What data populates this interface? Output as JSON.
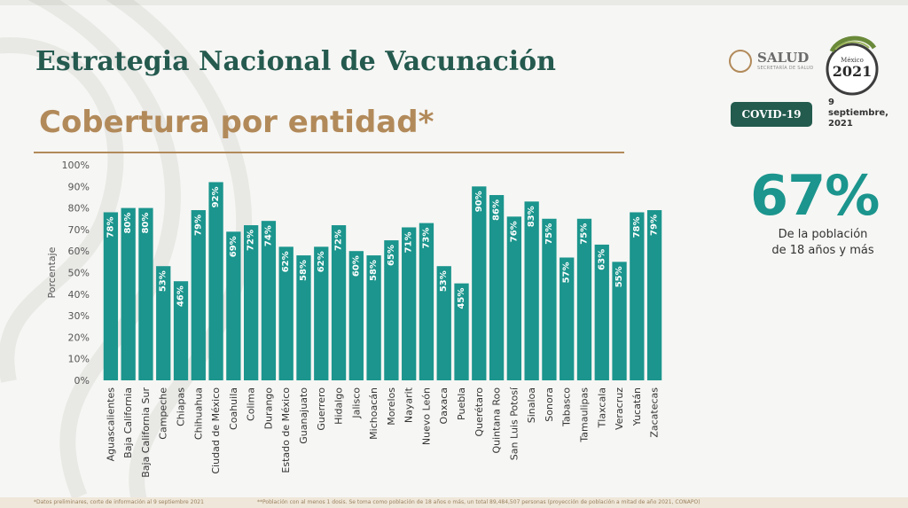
{
  "header": {
    "title": "Estrategia Nacional de Vacunación",
    "subtitle": "Cobertura por entidad*"
  },
  "logos": {
    "salud": "SALUD",
    "salud_sub": "SECRETARÍA DE SALUD",
    "mexico_year": "2021",
    "mexico_word": "México"
  },
  "badge": {
    "label": "COVID-19"
  },
  "date": {
    "text": "9\nseptiembre,\n2021"
  },
  "highlight": {
    "value": "67%",
    "description": "De la población\nde 18 años y más"
  },
  "colors": {
    "bar": "#1b958d",
    "title": "#255a4f",
    "accent": "#b28a5a",
    "badge": "#235b4e"
  },
  "chart_data": {
    "type": "bar",
    "ylabel": "Porcentaje",
    "ylim": [
      0,
      100
    ],
    "yticks": [
      "0%",
      "10%",
      "20%",
      "30%",
      "40%",
      "50%",
      "60%",
      "70%",
      "80%",
      "90%",
      "100%"
    ],
    "grid": false,
    "categories": [
      "Aguascalientes",
      "Baja California",
      "Baja California Sur",
      "Campeche",
      "Chiapas",
      "Chihuahua",
      "Ciudad de México",
      "Coahuila",
      "Colima",
      "Durango",
      "Estado de México",
      "Guanajuato",
      "Guerrero",
      "Hidalgo",
      "Jalisco",
      "Michoacán",
      "Morelos",
      "Nayarit",
      "Nuevo León",
      "Oaxaca",
      "Puebla",
      "Querétaro",
      "Quintana Roo",
      "San Luis Potosí",
      "Sinaloa",
      "Sonora",
      "Tabasco",
      "Tamaulipas",
      "Tlaxcala",
      "Veracruz",
      "Yucatán",
      "Zacatecas"
    ],
    "values": [
      78,
      80,
      80,
      53,
      46,
      79,
      92,
      69,
      72,
      74,
      62,
      58,
      62,
      72,
      60,
      58,
      65,
      71,
      73,
      53,
      45,
      90,
      86,
      76,
      83,
      75,
      57,
      75,
      63,
      55,
      78,
      79
    ],
    "data_labels": [
      "78%",
      "80%",
      "80%",
      "53%",
      "46%",
      "79%",
      "92%",
      "69%",
      "72%",
      "74%",
      "62%",
      "58%",
      "62%",
      "72%",
      "60%",
      "58%",
      "65%",
      "71%",
      "73%",
      "53%",
      "45%",
      "90%",
      "86%",
      "76%",
      "83%",
      "75%",
      "57%",
      "75%",
      "63%",
      "55%",
      "78%",
      "79%"
    ]
  },
  "footnotes": {
    "left": "*Datos preliminares, corte de información al 9 septiembre 2021",
    "right": "**Población con al menos 1 dosis. Se toma como población de 18 años o más, un total 89,484,507 personas (proyección de población a mitad de año 2021, CONAPO)"
  }
}
